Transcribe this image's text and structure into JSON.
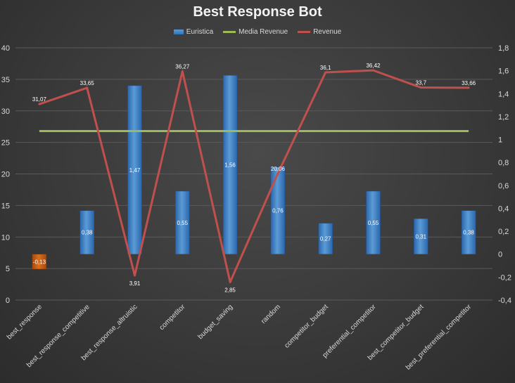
{
  "chart_data": {
    "type": "bar",
    "title": "Best Response Bot",
    "categories": [
      "best_response",
      "best_response_competitive",
      "best_response_altruistic",
      "competitor",
      "budget_saving",
      "random",
      "competitor_budget",
      "preferential_competitor",
      "best_competitor_budget",
      "best_preferential_competitor"
    ],
    "series": [
      {
        "name": "Euristica",
        "type": "bar",
        "axis": "secondary",
        "values": [
          -0.13,
          0.38,
          1.47,
          0.55,
          1.56,
          0.76,
          0.27,
          0.55,
          0.31,
          0.38
        ],
        "labels": [
          "-0,13",
          "0,38",
          "1,47",
          "0,55",
          "1,56",
          "0,76",
          "0,27",
          "0,55",
          "0,31",
          "0,38"
        ],
        "color": "#3f7fc6",
        "negative_color": "#c55a11"
      },
      {
        "name": "Media Revenue",
        "type": "line",
        "axis": "primary",
        "values": [
          26.8,
          26.8,
          26.8,
          26.8,
          26.8,
          26.8,
          26.8,
          26.8,
          26.8,
          26.8
        ],
        "color": "#9bbb59"
      },
      {
        "name": "Revenue",
        "type": "line",
        "axis": "primary",
        "values": [
          31.07,
          33.65,
          3.91,
          36.27,
          2.85,
          20.06,
          36.1,
          36.42,
          33.7,
          33.66
        ],
        "labels": [
          "31,07",
          "33,65",
          "3,91",
          "36,27",
          "2,85",
          "20,06",
          "36,1",
          "36,42",
          "33,7",
          "33,66"
        ],
        "color": "#c0504d"
      }
    ],
    "y_primary": {
      "ylim": [
        0,
        40
      ],
      "ticks": [
        "0",
        "5",
        "10",
        "15",
        "20",
        "25",
        "30",
        "35",
        "40"
      ]
    },
    "y_secondary": {
      "ylim": [
        -0.4,
        1.8
      ],
      "ticks": [
        "-0,4",
        "-0,2",
        "0",
        "0,2",
        "0,4",
        "0,6",
        "0,8",
        "1",
        "1,2",
        "1,4",
        "1,6",
        "1,8"
      ]
    },
    "grid": true,
    "legend_position": "top"
  }
}
